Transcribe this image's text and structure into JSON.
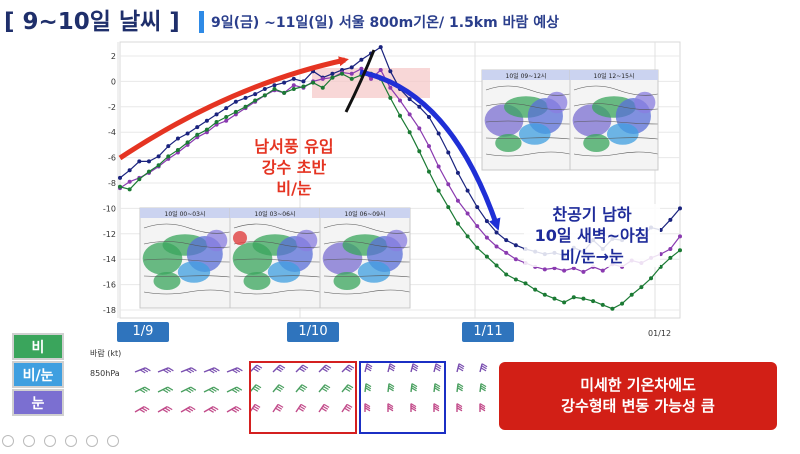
{
  "title": "[ 9~10일 날씨 ]",
  "subtitle": "9일(금) ~11일(일) 서울 800m기온/ 1.5km 바람 예상",
  "chart_data": {
    "type": "line",
    "ylim": [
      -18,
      2
    ],
    "yticks": [
      2,
      0,
      -2,
      -4,
      -6,
      -8,
      -10,
      -12,
      -14,
      -16,
      -18
    ],
    "x_labels": [
      "1/9",
      "1/10",
      "1/11"
    ],
    "corner_label": "01/12",
    "series": [
      {
        "values": [
          -7.6,
          -7.0,
          -6.3,
          -6.3,
          -5.9,
          -5.1,
          -4.5,
          -4.1,
          -3.6,
          -3.1,
          -2.6,
          -2.1,
          -1.6,
          -1.3,
          -1.0,
          -0.6,
          -0.3,
          -0.1,
          0.2,
          0.0,
          0.8,
          0.3,
          0.6,
          0.9,
          1.1,
          1.7,
          2.2,
          2.7,
          0.8,
          -0.6,
          -1.4,
          -2.0,
          -2.8,
          -4.1,
          -5.6,
          -7.2,
          -8.6,
          -9.9,
          -11.0,
          -11.9,
          -12.5,
          -12.9,
          -13.2,
          -13.4,
          -13.6,
          -13.5,
          -13.7,
          -13.1,
          -13.4,
          -12.5,
          -13.2,
          -12.4,
          -12.5,
          -12.0,
          -12.3,
          -11.5,
          -11.7,
          -10.9,
          -10.0
        ]
      },
      {
        "values": [
          -8.4,
          -7.9,
          -7.6,
          -7.2,
          -6.7,
          -6.1,
          -5.6,
          -5.0,
          -4.4,
          -4.0,
          -3.4,
          -3.1,
          -2.6,
          -2.1,
          -1.6,
          -1.1,
          -0.7,
          -0.9,
          -0.3,
          -0.5,
          0.0,
          0.2,
          0.3,
          0.7,
          0.6,
          1.0,
          0.2,
          0.9,
          -0.5,
          -1.5,
          -2.6,
          -3.7,
          -5.1,
          -6.7,
          -8.1,
          -9.4,
          -10.4,
          -11.4,
          -12.3,
          -13.0,
          -13.5,
          -14.0,
          -14.3,
          -14.6,
          -14.8,
          -14.7,
          -14.9,
          -14.7,
          -15.0,
          -14.6,
          -14.9,
          -14.4,
          -14.6,
          -14.1,
          -14.3,
          -13.9,
          -13.6,
          -13.2,
          -12.2
        ]
      },
      {
        "values": [
          -8.3,
          -8.5,
          -7.7,
          -7.1,
          -6.6,
          -5.9,
          -5.4,
          -4.8,
          -4.2,
          -3.8,
          -3.2,
          -2.8,
          -2.4,
          -2.0,
          -1.5,
          -1.1,
          -0.6,
          -0.9,
          -0.6,
          -0.4,
          -0.1,
          -0.5,
          0.3,
          0.6,
          0.2,
          0.5,
          0.6,
          0.2,
          -1.3,
          -2.7,
          -4.0,
          -5.5,
          -7.1,
          -8.6,
          -9.9,
          -11.2,
          -12.2,
          -13.1,
          -13.8,
          -14.5,
          -15.2,
          -15.6,
          -15.9,
          -16.4,
          -16.8,
          -17.1,
          -17.4,
          -17.0,
          -17.1,
          -17.3,
          -17.6,
          -17.9,
          -17.5,
          -16.8,
          -16.2,
          -15.5,
          -14.6,
          -13.9,
          -13.3
        ]
      }
    ]
  },
  "annotations": {
    "red": [
      "남서풍 유입",
      "강수 초반",
      "비/눈"
    ],
    "blue": [
      "찬공기 남하",
      "10일 새벽~아침",
      "비/눈→눈"
    ]
  },
  "maps": [
    {
      "label": "10일 00~03시"
    },
    {
      "label": "10일 03~06시"
    },
    {
      "label": "10일 06~09시"
    },
    {
      "label": "10일 09~12시"
    },
    {
      "label": "10일 12~15시"
    }
  ],
  "legend": [
    {
      "label": "비",
      "color": "#3aa55c"
    },
    {
      "label": "비/눈",
      "color": "#3f9fe0"
    },
    {
      "label": "눈",
      "color": "#7b6fd1"
    }
  ],
  "wind": {
    "title": "바람 (kt)",
    "level": "850hPa"
  },
  "callout": {
    "line1": "미세한 기온차에도",
    "line2": "강수형태 변동 가능성 큼"
  },
  "colors": {
    "title": "#1f2f6b",
    "subtitle": "#2a3e8c",
    "accent": "#2e8ae6",
    "date_box": "#2f74bd",
    "callout": "#d21f16",
    "red_arrow": "#e53422",
    "blue_arrow": "#1f2fd6",
    "series_navy": "#1a237e",
    "series_purple": "#8a3ab0",
    "series_green": "#1b7a34"
  }
}
